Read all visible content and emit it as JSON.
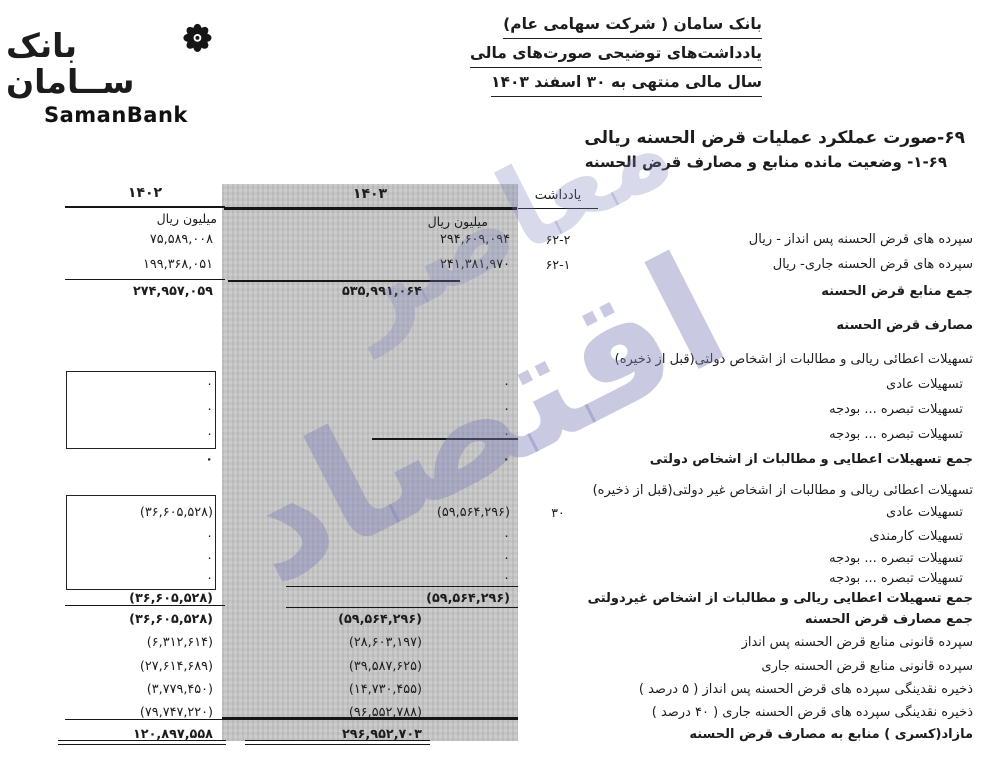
{
  "logo": {
    "persian_wordmark": "بانک ســامان",
    "latin_wordmark": "SamanBank",
    "emblem": "flower-star-emblem"
  },
  "letterhead": {
    "lines": [
      "بانک سامان ( شرکت سهامی عام)",
      "یادداشت‌های توضیحی صورت‌های مالی",
      "سال مالی منتهی به ۳۰ اسفند ۱۴۰۳"
    ]
  },
  "section": {
    "title": "۶۹-صورت عملکرد عملیات قرض الحسنه ریالی",
    "subtitle": "۱-۶۹- وضعیت مانده منابع و مصارف قرض الحسنه"
  },
  "table": {
    "col_note": "یادداشت",
    "col_1403": "۱۴۰۳",
    "col_1402": "۱۴۰۲",
    "unit": "میلیون ریال",
    "rows": [
      {
        "label": "سپرده های قرض الحسنه پس انداز - ریال",
        "note": "۶۲-۲",
        "v1403": "۲۹۴,۶۰۹,۰۹۴",
        "v1402": "۷۵,۵۸۹,۰۰۸"
      },
      {
        "label": "سپرده های قرض الحسنه جاری- ریال",
        "note": "۶۲-۱",
        "v1403": "۲۴۱,۳۸۱,۹۷۰",
        "v1402": "۱۹۹,۳۶۸,۰۵۱"
      },
      {
        "label": "جمع منابع قرض الحسنه",
        "bold": true,
        "v1403": "۵۳۵,۹۹۱,۰۶۴",
        "v1402": "۲۷۴,۹۵۷,۰۵۹"
      },
      {
        "label": "مصارف قرض الحسنه",
        "bold": true
      },
      {
        "label": "تسهیلات اعطائی ریالی و مطالبات از اشخاص دولتی(قبل از ذخیره)"
      },
      {
        "label": "تسهیلات عادی",
        "indent": true,
        "v1403": "۰",
        "v1402": "۰"
      },
      {
        "label": "تسهیلات تبصره ... بودجه",
        "indent": true,
        "v1403": "۰",
        "v1402": "۰"
      },
      {
        "label": "تسهیلات تبصره ... بودجه",
        "indent": true,
        "v1403": "۰",
        "v1402": "۰"
      },
      {
        "label": "جمع تسهیلات اعطایی و مطالبات از اشخاص دولتی",
        "bold": true,
        "v1403": "۰",
        "v1402": "۰"
      },
      {
        "label": "تسهیلات اعطائی ریالی و مطالبات از اشخاص غیر دولتی(قبل از ذخیره)"
      },
      {
        "label": "تسهیلات عادی",
        "indent": true,
        "note": "۳۰",
        "v1403": "(۵۹,۵۶۴,۲۹۶)",
        "v1402": "(۳۶,۶۰۵,۵۲۸)"
      },
      {
        "label": "تسهیلات کارمندی",
        "indent": true,
        "v1403": "۰",
        "v1402": "۰"
      },
      {
        "label": "تسهیلات تبصره ... بودجه",
        "indent": true,
        "v1403": "۰",
        "v1402": "۰"
      },
      {
        "label": "تسهیلات تبصره ... بودجه",
        "indent": true,
        "v1403": "۰",
        "v1402": "۰"
      },
      {
        "label": "جمع تسهیلات اعطایی ریالی و مطالبات از اشخاص غیردولتی",
        "bold": true,
        "v1403": "(۵۹,۵۶۴,۲۹۶)",
        "v1402": "(۳۶,۶۰۵,۵۲۸)"
      },
      {
        "label": "جمع مصارف قرض الحسنه",
        "bold": true,
        "v1403": "(۵۹,۵۶۴,۲۹۶)",
        "v1402": "(۳۶,۶۰۵,۵۲۸)"
      },
      {
        "label": "سپرده قانونی منابع قرض الحسنه پس انداز",
        "v1403": "(۲۸,۶۰۳,۱۹۷)",
        "v1402": "(۶,۳۱۲,۶۱۴)"
      },
      {
        "label": "سپرده قانونی منابع قرض الحسنه جاری",
        "v1403": "(۳۹,۵۸۷,۶۲۵)",
        "v1402": "(۲۷,۶۱۴,۶۸۹)"
      },
      {
        "label": "ذخیره نقدینگی سپرده های قرض الحسنه پس انداز ( ۵ درصد )",
        "v1403": "(۱۴,۷۳۰,۴۵۵)",
        "v1402": "(۳,۷۷۹,۴۵۰)"
      },
      {
        "label": "ذخیره نقدینگی سپرده های قرض الحسنه جاری ( ۴۰ درصد )",
        "v1403": "(۹۶,۵۵۲,۷۸۸)",
        "v1402": "(۷۹,۷۴۷,۲۲۰)"
      },
      {
        "label": "مازاد(کسری ) منابع به مصارف قرض الحسنه",
        "bold": true,
        "v1403": "۲۹۶,۹۵۲,۷۰۳",
        "v1402": "۱۲۰,۸۹۷,۵۵۸"
      }
    ]
  },
  "watermark": {
    "text_main": "اقتصاد",
    "text_sub": "معاصر"
  },
  "colors": {
    "page_bg": "#ffffff",
    "ink": "#1c1c1c",
    "band_gray": "#c7c7c7",
    "watermark_blue": "#7e80ba"
  }
}
